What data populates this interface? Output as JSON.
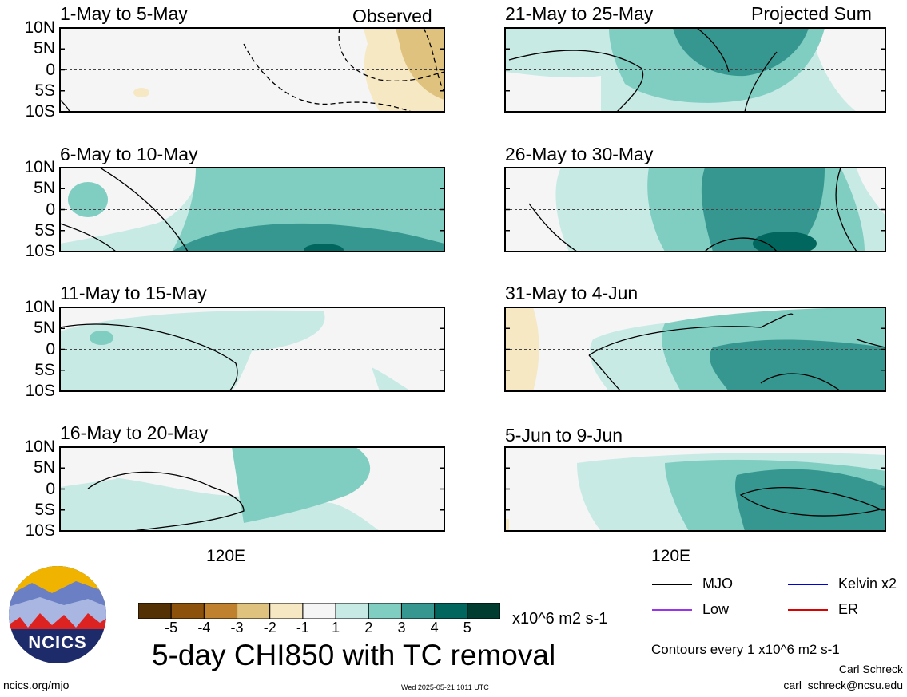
{
  "chart_data": {
    "type": "heatmap",
    "title": "5-day CHI850 with TC removal",
    "units": "x10^6 m2 s-1",
    "contour_note": "Contours every 1 x10^6 m2 s-1",
    "lat_ticks": [
      "10N",
      "5N",
      "0",
      "5S",
      "10S"
    ],
    "lon_tick": "120E",
    "colorbar": {
      "ticks": [
        "-5",
        "-4",
        "-3",
        "-2",
        "-1",
        "1",
        "2",
        "3",
        "4",
        "5"
      ],
      "colors": [
        "#543005",
        "#8c510a",
        "#bf812d",
        "#dfc27d",
        "#f6e8c3",
        "#f5f5f5",
        "#c7eae5",
        "#80cdc1",
        "#35978f",
        "#01665e",
        "#003c30"
      ]
    },
    "panels": [
      {
        "title": "1-May to 5-May",
        "label": "Observed"
      },
      {
        "title": "6-May to 10-May",
        "label": ""
      },
      {
        "title": "11-May to 15-May",
        "label": ""
      },
      {
        "title": "16-May to 20-May",
        "label": ""
      },
      {
        "title": "21-May to 25-May",
        "label": "Projected Sum"
      },
      {
        "title": "26-May to 30-May",
        "label": ""
      },
      {
        "title": "31-May to 4-Jun",
        "label": ""
      },
      {
        "title": "5-Jun to 9-Jun",
        "label": ""
      }
    ],
    "legend": [
      {
        "name": "MJO",
        "color": "#000000"
      },
      {
        "name": "Kelvin x2",
        "color": "#0000dd"
      },
      {
        "name": "Low",
        "color": "#9933ee"
      },
      {
        "name": "ER",
        "color": "#dd0000"
      }
    ]
  },
  "footer": {
    "logo_text": "NCICS",
    "url": "ncics.org/mjo",
    "timestamp": "Wed 2025-05-21 1011 UTC",
    "author": "Carl Schreck",
    "email": "carl_schreck@ncsu.edu"
  }
}
